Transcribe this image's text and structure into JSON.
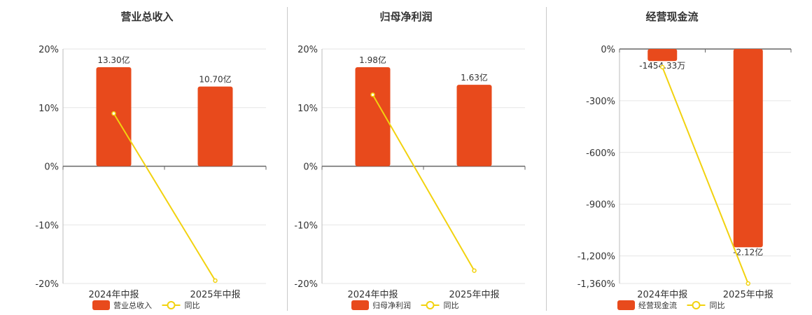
{
  "colors": {
    "bar": "#e84a1c",
    "line": "#f2d20f",
    "axis": "#666666",
    "grid": "#e6e6e6",
    "text": "#333333"
  },
  "chart_data": [
    {
      "type": "bar",
      "title": "营业总收入",
      "categories": [
        "2024年中报",
        "2025年中报"
      ],
      "series": [
        {
          "name": "营业总收入",
          "type": "bar",
          "values": [
            16.9,
            13.6
          ],
          "data_labels": [
            "13.30亿",
            "10.70亿"
          ]
        },
        {
          "name": "同比",
          "type": "line",
          "values": [
            9.0,
            -19.5
          ]
        }
      ],
      "ylim": [
        -20,
        20
      ],
      "yticks": [
        20,
        10,
        0,
        -10,
        -20
      ],
      "ytick_labels": [
        "20%",
        "10%",
        "0%",
        "-10%",
        "-20%"
      ],
      "grid": true,
      "legend": "bottom"
    },
    {
      "type": "bar",
      "title": "归母净利润",
      "categories": [
        "2024年中报",
        "2025年中报"
      ],
      "series": [
        {
          "name": "归母净利润",
          "type": "bar",
          "values": [
            16.9,
            13.9
          ],
          "data_labels": [
            "1.98亿",
            "1.63亿"
          ]
        },
        {
          "name": "同比",
          "type": "line",
          "values": [
            12.2,
            -17.8
          ]
        }
      ],
      "ylim": [
        -20,
        20
      ],
      "yticks": [
        20,
        10,
        0,
        -10,
        -20
      ],
      "ytick_labels": [
        "20%",
        "10%",
        "0%",
        "-10%",
        "-20%"
      ],
      "grid": true,
      "legend": "bottom"
    },
    {
      "type": "bar",
      "title": "经营现金流",
      "categories": [
        "2024年中报",
        "2025年中报"
      ],
      "series": [
        {
          "name": "经营现金流",
          "type": "bar",
          "values": [
            -70,
            -1150
          ],
          "data_labels": [
            "-1454.33万",
            "-2.12亿"
          ]
        },
        {
          "name": "同比",
          "type": "line",
          "values": [
            -105,
            -1360
          ]
        }
      ],
      "ylim": [
        -1360,
        0
      ],
      "yticks": [
        0,
        -300,
        -600,
        -900,
        -1200,
        -1360
      ],
      "ytick_labels": [
        "0%",
        "-300%",
        "-600%",
        "-900%",
        "-1,200%",
        "-1,360%"
      ],
      "grid": true,
      "legend": "bottom"
    }
  ]
}
